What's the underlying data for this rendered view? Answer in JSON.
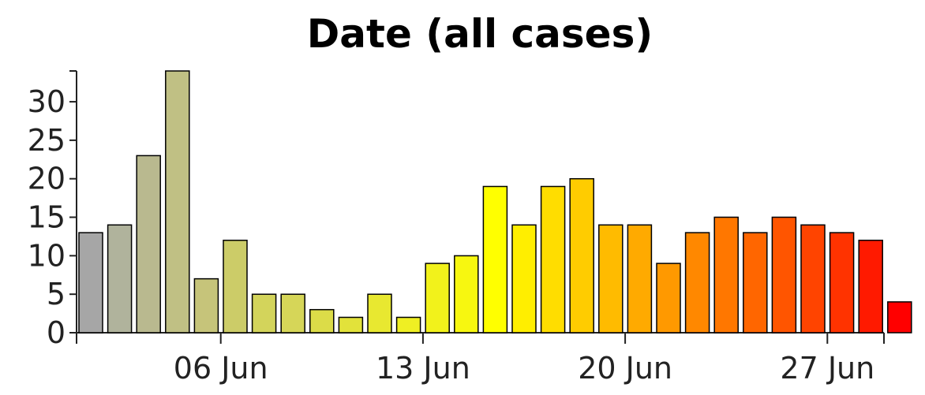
{
  "chart_data": {
    "type": "bar",
    "title": "Date (all cases)",
    "xlabel": "",
    "ylabel": "",
    "ylim": [
      0,
      34
    ],
    "yticks": [
      0,
      5,
      10,
      15,
      20,
      25,
      30
    ],
    "grid": false,
    "legend": "none",
    "categories": [
      "2021-06-01",
      "2021-06-02",
      "2021-06-03",
      "2021-06-04",
      "2021-06-05",
      "2021-06-06",
      "2021-06-07",
      "2021-06-08",
      "2021-06-09",
      "2021-06-10",
      "2021-06-11",
      "2021-06-12",
      "2021-06-13",
      "2021-06-14",
      "2021-06-15",
      "2021-06-16",
      "2021-06-17",
      "2021-06-18",
      "2021-06-19",
      "2021-06-20",
      "2021-06-21",
      "2021-06-22",
      "2021-06-23",
      "2021-06-24",
      "2021-06-25",
      "2021-06-26",
      "2021-06-27",
      "2021-06-28",
      "2021-06-29"
    ],
    "values": [
      13,
      14,
      23,
      34,
      7,
      12,
      5,
      5,
      3,
      2,
      5,
      2,
      9,
      10,
      19,
      14,
      19,
      20,
      14,
      14,
      9,
      13,
      15,
      13,
      15,
      14,
      13,
      12,
      4
    ],
    "colors": [
      "#a6a6a6",
      "#b0b39c",
      "#b9b98f",
      "#c0c084",
      "#c6c47a",
      "#cccc68",
      "#d3d45b",
      "#d6d658",
      "#dcdc48",
      "#e2e23a",
      "#e8e830",
      "#efef23",
      "#f2f21b",
      "#f7f710",
      "#ffff00",
      "#ffee00",
      "#ffdd00",
      "#ffcc00",
      "#ffbb00",
      "#ffaa00",
      "#ff9900",
      "#ff8800",
      "#ff7700",
      "#ff6600",
      "#ff5500",
      "#ff4400",
      "#ff3300",
      "#ff1a00",
      "#ff0000"
    ],
    "xticks": [
      {
        "category": "2021-06-06",
        "label": "06 Jun"
      },
      {
        "category": "2021-06-13",
        "label": "13 Jun"
      },
      {
        "category": "2021-06-20",
        "label": "20 Jun"
      },
      {
        "category": "2021-06-27",
        "label": "27 Jun"
      }
    ]
  }
}
